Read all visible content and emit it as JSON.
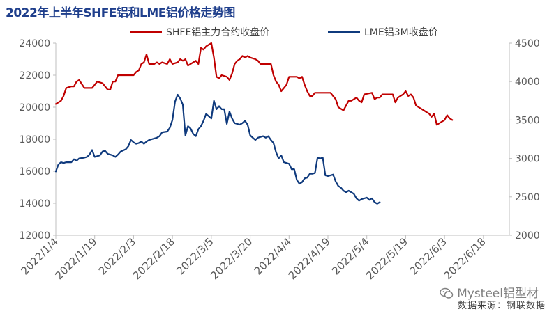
{
  "title": "2022年上半年SHFE铝和LME铝价格走势图",
  "watermark": "Mysteel铝型材",
  "watermark_icon": "wechat-icon",
  "source": "数据来源：钢联数据",
  "colors": {
    "shfe": "#c00000",
    "lme": "#0f3a7d",
    "axis": "#bfbfbf",
    "text": "#595959"
  },
  "chart_data": {
    "type": "line",
    "title": "2022年上半年SHFE铝和LME铝价格走势图",
    "legend_position": "top-center",
    "x_labels": [
      "2022/1/4",
      "2022/1/19",
      "2022/2/3",
      "2022/2/18",
      "2022/3/5",
      "2022/3/20",
      "2022/4/4",
      "2022/4/19",
      "2022/5/4",
      "2022/5/19",
      "2022/6/3",
      "2022/6/18"
    ],
    "x_range": [
      0,
      175
    ],
    "y_left": {
      "min": 12000,
      "max": 24000,
      "step": 2000,
      "ticks": [
        "12000",
        "14000",
        "16000",
        "18000",
        "20000",
        "22000",
        "24000"
      ]
    },
    "y_right": {
      "min": 2000,
      "max": 4500,
      "step": 500,
      "ticks": [
        "2000",
        "2500",
        "3000",
        "3500",
        "4000",
        "4500"
      ]
    },
    "series": [
      {
        "name": "SHFE铝主力合约收盘价",
        "axis": "left",
        "points": [
          [
            0,
            20200
          ],
          [
            2,
            20400
          ],
          [
            3,
            20700
          ],
          [
            4,
            21200
          ],
          [
            6,
            21300
          ],
          [
            7,
            21300
          ],
          [
            8,
            21600
          ],
          [
            9,
            21700
          ],
          [
            11,
            21200
          ],
          [
            14,
            21200
          ],
          [
            15,
            21400
          ],
          [
            16,
            21600
          ],
          [
            18,
            21500
          ],
          [
            19,
            21300
          ],
          [
            20,
            21100
          ],
          [
            21,
            21100
          ],
          [
            22,
            21600
          ],
          [
            23,
            21600
          ],
          [
            24,
            22000
          ],
          [
            29,
            22000
          ],
          [
            30,
            22000
          ],
          [
            31,
            22200
          ],
          [
            32,
            22300
          ],
          [
            33,
            22700
          ],
          [
            34,
            22800
          ],
          [
            35,
            23300
          ],
          [
            36,
            22700
          ],
          [
            38,
            22700
          ],
          [
            39,
            22800
          ],
          [
            40,
            22700
          ],
          [
            41,
            22800
          ],
          [
            43,
            22700
          ],
          [
            44,
            23000
          ],
          [
            45,
            22700
          ],
          [
            47,
            22800
          ],
          [
            48,
            23000
          ],
          [
            49,
            22900
          ],
          [
            50,
            23000
          ],
          [
            51,
            22600
          ],
          [
            53,
            22800
          ],
          [
            54,
            22900
          ],
          [
            55,
            22700
          ],
          [
            56,
            23700
          ],
          [
            57,
            23600
          ],
          [
            58,
            23800
          ],
          [
            60,
            24000
          ],
          [
            61,
            23100
          ],
          [
            62,
            21900
          ],
          [
            63,
            21800
          ],
          [
            64,
            22000
          ],
          [
            66,
            21900
          ],
          [
            67,
            21700
          ],
          [
            68,
            22100
          ],
          [
            69,
            22700
          ],
          [
            70,
            22900
          ],
          [
            71,
            23000
          ],
          [
            72,
            23200
          ],
          [
            73,
            23100
          ],
          [
            74,
            23200
          ],
          [
            75,
            23100
          ],
          [
            77,
            23000
          ],
          [
            78,
            22900
          ],
          [
            79,
            22700
          ],
          [
            83,
            22700
          ],
          [
            84,
            22000
          ],
          [
            85,
            21600
          ],
          [
            86,
            21400
          ],
          [
            87,
            21000
          ],
          [
            88,
            21200
          ],
          [
            89,
            21400
          ],
          [
            90,
            21900
          ],
          [
            93,
            21900
          ],
          [
            94,
            21800
          ],
          [
            95,
            21900
          ],
          [
            96,
            21400
          ],
          [
            97,
            21000
          ],
          [
            98,
            20700
          ],
          [
            99,
            20700
          ],
          [
            100,
            20900
          ],
          [
            102,
            20900
          ],
          [
            106,
            20900
          ],
          [
            108,
            20500
          ],
          [
            109,
            20000
          ],
          [
            110,
            19900
          ],
          [
            111,
            19800
          ],
          [
            112,
            20100
          ],
          [
            113,
            20400
          ],
          [
            114,
            20400
          ],
          [
            116,
            20600
          ],
          [
            117,
            20400
          ],
          [
            118,
            20300
          ],
          [
            119,
            20800
          ],
          [
            122,
            20900
          ],
          [
            123,
            20500
          ],
          [
            124,
            20600
          ],
          [
            125,
            20600
          ],
          [
            126,
            20800
          ],
          [
            130,
            20800
          ],
          [
            131,
            20300
          ],
          [
            132,
            20600
          ],
          [
            134,
            20800
          ],
          [
            135,
            21000
          ],
          [
            136,
            20700
          ],
          [
            137,
            20800
          ],
          [
            138,
            20600
          ],
          [
            139,
            20100
          ],
          [
            140,
            20000
          ],
          [
            142,
            19800
          ],
          [
            143,
            19700
          ],
          [
            144,
            19600
          ],
          [
            145,
            19400
          ],
          [
            146,
            19600
          ],
          [
            147,
            18900
          ],
          [
            148,
            19000
          ],
          [
            150,
            19200
          ],
          [
            151,
            19500
          ],
          [
            152,
            19300
          ],
          [
            153,
            19200
          ]
        ]
      },
      {
        "name": "LME铝3M收盘价",
        "axis": "right",
        "points": [
          [
            0,
            2830
          ],
          [
            1,
            2920
          ],
          [
            2,
            2950
          ],
          [
            3,
            2940
          ],
          [
            4,
            2950
          ],
          [
            6,
            2950
          ],
          [
            7,
            2990
          ],
          [
            8,
            2970
          ],
          [
            9,
            3000
          ],
          [
            11,
            3010
          ],
          [
            12,
            3020
          ],
          [
            13,
            3050
          ],
          [
            14,
            3110
          ],
          [
            15,
            3020
          ],
          [
            16,
            3030
          ],
          [
            17,
            3040
          ],
          [
            18,
            3090
          ],
          [
            19,
            3100
          ],
          [
            20,
            3060
          ],
          [
            21,
            3050
          ],
          [
            22,
            3040
          ],
          [
            23,
            3020
          ],
          [
            24,
            3050
          ],
          [
            25,
            3090
          ],
          [
            27,
            3120
          ],
          [
            28,
            3160
          ],
          [
            29,
            3240
          ],
          [
            30,
            3210
          ],
          [
            31,
            3190
          ],
          [
            32,
            3200
          ],
          [
            33,
            3220
          ],
          [
            34,
            3190
          ],
          [
            35,
            3220
          ],
          [
            36,
            3240
          ],
          [
            37,
            3250
          ],
          [
            38,
            3260
          ],
          [
            39,
            3270
          ],
          [
            40,
            3290
          ],
          [
            41,
            3340
          ],
          [
            43,
            3350
          ],
          [
            44,
            3400
          ],
          [
            45,
            3500
          ],
          [
            46,
            3740
          ],
          [
            47,
            3830
          ],
          [
            48,
            3780
          ],
          [
            49,
            3700
          ],
          [
            50,
            3300
          ],
          [
            51,
            3420
          ],
          [
            52,
            3390
          ],
          [
            53,
            3320
          ],
          [
            54,
            3290
          ],
          [
            55,
            3380
          ],
          [
            56,
            3420
          ],
          [
            57,
            3490
          ],
          [
            58,
            3580
          ],
          [
            59,
            3550
          ],
          [
            60,
            3520
          ],
          [
            61,
            3750
          ],
          [
            62,
            3640
          ],
          [
            63,
            3680
          ],
          [
            64,
            3640
          ],
          [
            65,
            3640
          ],
          [
            66,
            3450
          ],
          [
            67,
            3610
          ],
          [
            68,
            3520
          ],
          [
            69,
            3460
          ],
          [
            70,
            3450
          ],
          [
            71,
            3440
          ],
          [
            72,
            3460
          ],
          [
            73,
            3490
          ],
          [
            74,
            3440
          ],
          [
            75,
            3300
          ],
          [
            76,
            3270
          ],
          [
            77,
            3240
          ],
          [
            78,
            3270
          ],
          [
            79,
            3280
          ],
          [
            80,
            3290
          ],
          [
            81,
            3270
          ],
          [
            82,
            3290
          ],
          [
            83,
            3240
          ],
          [
            84,
            3200
          ],
          [
            85,
            3080
          ],
          [
            86,
            3000
          ],
          [
            87,
            3040
          ],
          [
            88,
            2950
          ],
          [
            89,
            2940
          ],
          [
            90,
            2930
          ],
          [
            91,
            2860
          ],
          [
            92,
            2860
          ],
          [
            93,
            2720
          ],
          [
            94,
            2670
          ],
          [
            95,
            2690
          ],
          [
            96,
            2740
          ],
          [
            97,
            2750
          ],
          [
            98,
            2800
          ],
          [
            99,
            2800
          ],
          [
            100,
            2810
          ],
          [
            101,
            3010
          ],
          [
            102,
            3000
          ],
          [
            103,
            3010
          ],
          [
            104,
            2780
          ],
          [
            105,
            2770
          ],
          [
            106,
            2780
          ],
          [
            107,
            2790
          ],
          [
            108,
            2700
          ],
          [
            109,
            2640
          ],
          [
            110,
            2620
          ],
          [
            111,
            2580
          ],
          [
            112,
            2560
          ],
          [
            113,
            2580
          ],
          [
            114,
            2560
          ],
          [
            115,
            2540
          ],
          [
            116,
            2480
          ],
          [
            117,
            2450
          ],
          [
            118,
            2470
          ],
          [
            119,
            2480
          ],
          [
            120,
            2490
          ],
          [
            121,
            2460
          ],
          [
            122,
            2480
          ],
          [
            123,
            2430
          ],
          [
            124,
            2410
          ],
          [
            125,
            2430
          ]
        ]
      }
    ]
  }
}
